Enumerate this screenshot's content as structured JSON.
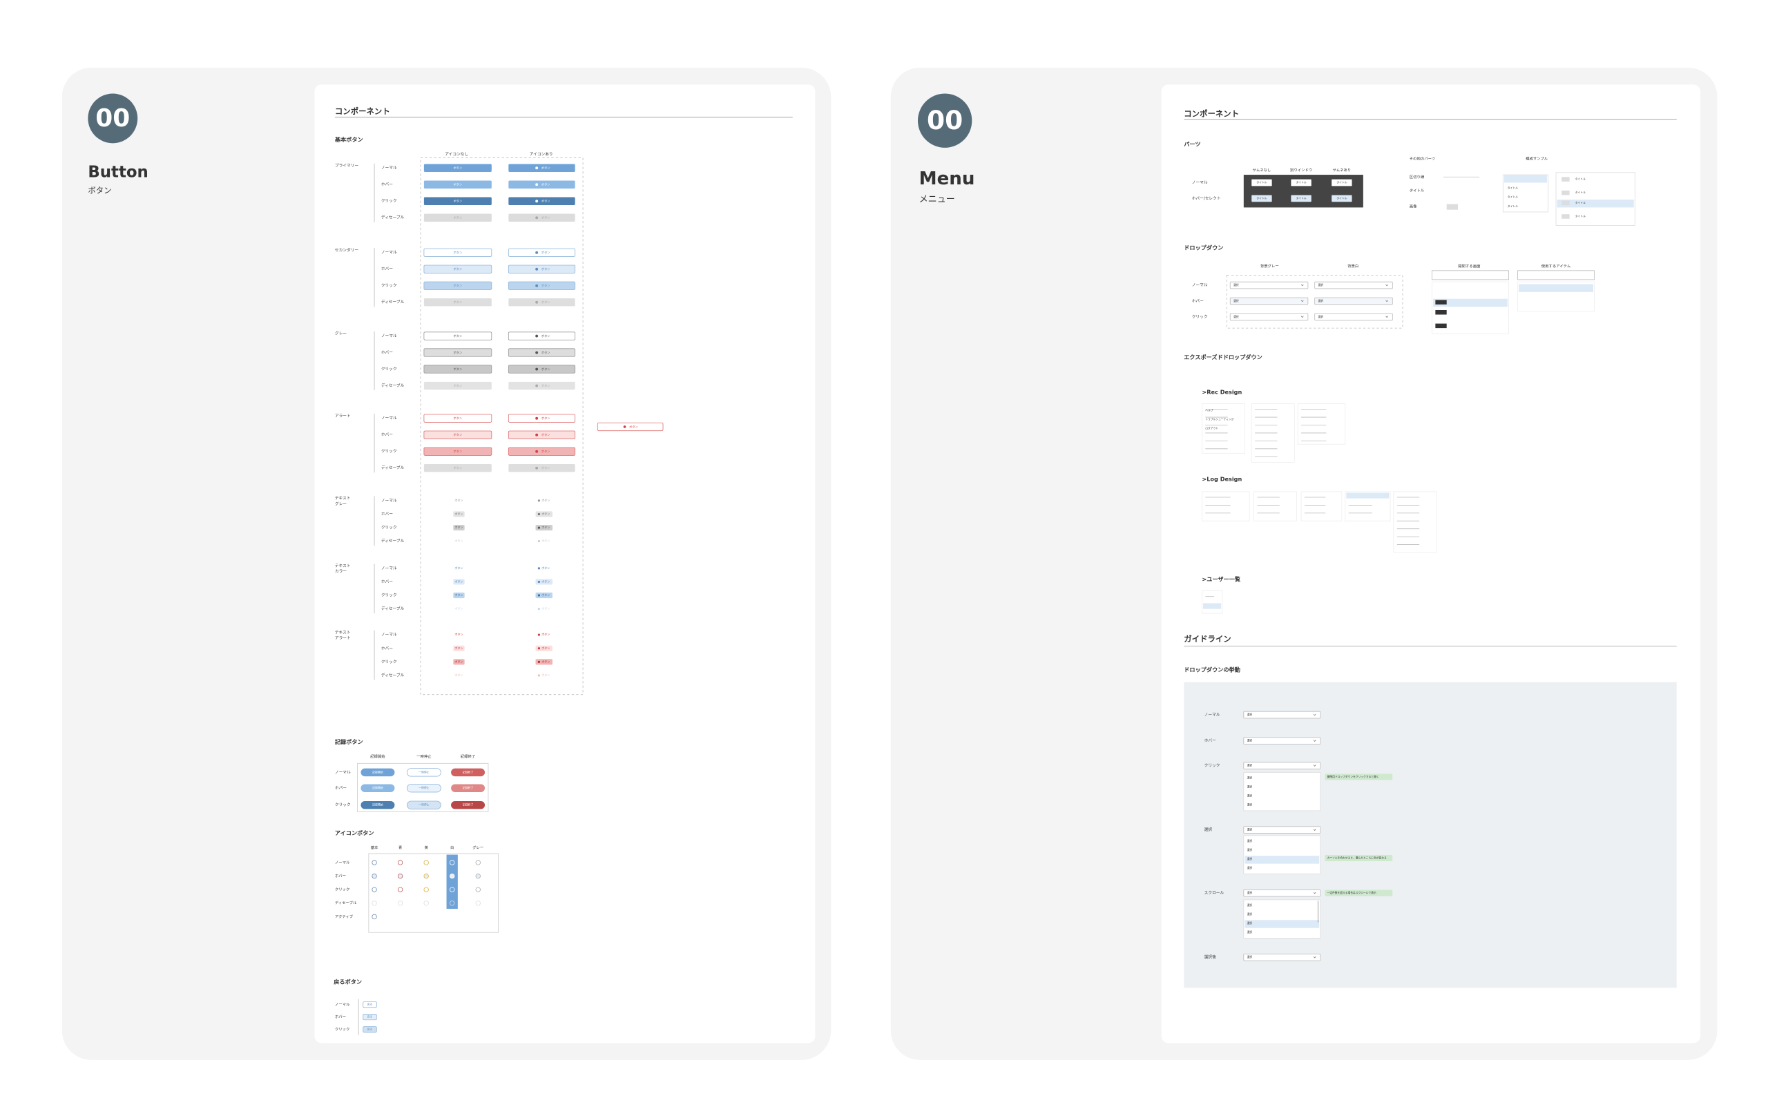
{
  "button_page": {
    "badge": "00",
    "title": "Button",
    "subtitle": "ボタン",
    "section": "コンポーネント",
    "basic": {
      "heading": "基本ボタン",
      "columns": [
        "アイコンなし",
        "アイコンあり"
      ],
      "states": [
        "ノーマル",
        "ホバー",
        "クリック",
        "ディセーブル"
      ],
      "groups": [
        [
          "プライマリー"
        ],
        [
          "セカンダリー"
        ],
        [
          "グレー"
        ],
        [
          "アラート"
        ],
        [
          "テキスト",
          "グレー"
        ],
        [
          "テキスト",
          "カラー"
        ],
        [
          "テキスト",
          "アラート"
        ]
      ],
      "label": "ボタン"
    },
    "record": {
      "heading": "記録ボタン",
      "columns": [
        "記録開始",
        "一時停止",
        "記録終了"
      ],
      "states": [
        "ノーマル",
        "ホバー",
        "クリック"
      ]
    },
    "icon": {
      "heading": "アイコンボタン",
      "columns": [
        "基本",
        "青",
        "黄",
        "白",
        "グレー"
      ],
      "states": [
        "ノーマル",
        "ホバー",
        "クリック",
        "ディセーブル",
        "アクティブ"
      ]
    },
    "back": {
      "heading": "戻るボタン",
      "states": [
        "ノーマル",
        "ホバー",
        "クリック"
      ],
      "label": "戻る"
    }
  },
  "menu_page": {
    "badge": "00",
    "title": "Menu",
    "subtitle": "メニュー",
    "section": "コンポーネント",
    "parts": {
      "heading": "パーツ",
      "columns": [
        "サムネなし",
        "別ウインドウ",
        "サムネあり"
      ],
      "states": [
        "ノーマル",
        "ホバー/セレクト"
      ],
      "item": "タイトル",
      "other_heading": "その他のパーツ",
      "other_rows": [
        "区切り線",
        "タイトル",
        "画像"
      ],
      "sample_heading": "構成サンプル"
    },
    "dropdown": {
      "heading": "ドロップダウン",
      "columns": [
        "背景グレー",
        "背景白"
      ],
      "states": [
        "ノーマル",
        "ホバー",
        "クリック"
      ],
      "value": "選択",
      "screen_heading": "開閉する画面",
      "items_heading": "使用するアイテム"
    },
    "exposed": {
      "heading": "エクスポーズドドロップダウン",
      "rec": ">Rec Design",
      "log": ">Log Design",
      "users": ">ユーザー一覧",
      "menu_items": [
        "ヘルプ",
        "トラブルシューティング",
        "ログアウト"
      ]
    },
    "guideline": {
      "section": "ガイドライン",
      "heading": "ドロップダウンの挙動",
      "rows": [
        "ノーマル",
        "ホバー",
        "クリック",
        "選択",
        "スクロール",
        "選択後"
      ],
      "value": "選択",
      "notes": [
        "開閉用ドロップダウンをクリックすると開く",
        "カーソルを合わせると、選んだところに色が変わる",
        "一定件数を超える場合はスクロールで表示"
      ]
    }
  }
}
